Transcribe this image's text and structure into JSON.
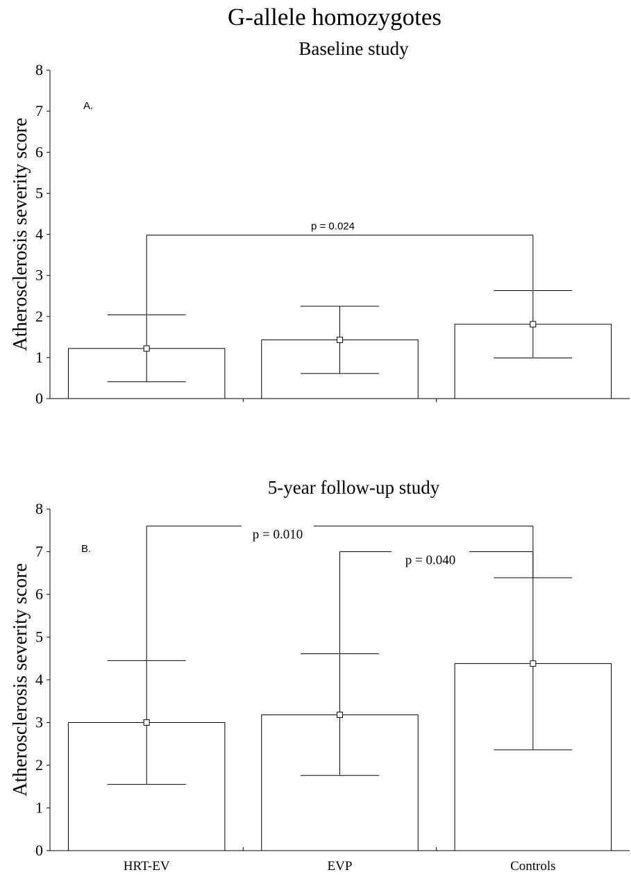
{
  "title": "G-allele homozygotes",
  "chart_data": [
    {
      "type": "bar",
      "panel_label": "A.",
      "title": "Baseline study",
      "ylabel": "Atherosclerosis severity score",
      "xlabel": "",
      "ylim": [
        0,
        8
      ],
      "yticks": [
        "0",
        "1",
        "2",
        "3",
        "4",
        "5",
        "6",
        "7",
        "8"
      ],
      "categories": [
        "HRT-EV",
        "EVP",
        "Controls"
      ],
      "show_category_labels": false,
      "values": [
        1.22,
        1.43,
        1.81
      ],
      "error_low": [
        0.41,
        0.61,
        0.99
      ],
      "error_high": [
        2.04,
        2.25,
        2.63
      ],
      "grid": false,
      "comparisons": [
        {
          "from": 0,
          "to": 2,
          "y": 3.98,
          "label": "p = 0.024",
          "style": "sans"
        }
      ]
    },
    {
      "type": "bar",
      "panel_label": "B.",
      "title": "5-year follow-up study",
      "ylabel": "Atherosclerosis severity score",
      "xlabel": "",
      "ylim": [
        0,
        8
      ],
      "yticks": [
        "0",
        "1",
        "2",
        "3",
        "4",
        "5",
        "6",
        "7",
        "8"
      ],
      "categories": [
        "HRT-EV",
        "EVP",
        "Controls"
      ],
      "show_category_labels": true,
      "values": [
        3.0,
        3.18,
        4.38
      ],
      "error_low": [
        1.55,
        1.76,
        2.36
      ],
      "error_high": [
        4.45,
        4.61,
        6.39
      ],
      "grid": false,
      "comparisons": [
        {
          "from": 0,
          "to": 2,
          "y": 7.6,
          "label": "p = 0.010",
          "style": "serif"
        },
        {
          "from": 1,
          "to": 2,
          "y": 7.0,
          "label": "p = 0.040",
          "style": "serif"
        }
      ]
    }
  ]
}
